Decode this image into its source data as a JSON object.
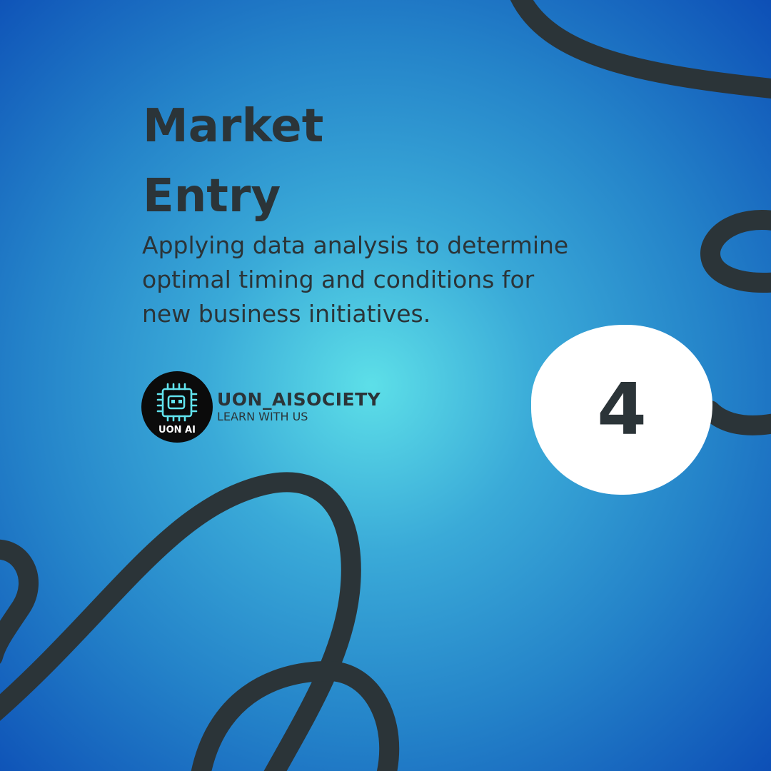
{
  "slide": {
    "title_line1": "Market",
    "title_line2": "Entry",
    "description": "Applying data analysis to determine optimal timing and conditions for new business initiatives.",
    "step_number": "4"
  },
  "brand": {
    "logo_text": "UON AI",
    "name": "UON_AISOCIETY",
    "tagline": "LEARN WITH US"
  },
  "colors": {
    "background_center": "#5ddfe8",
    "background_edge": "#0d4fb6",
    "text": "#2b3438",
    "badge": "#ffffff",
    "logo_bg": "#0b0b0b",
    "logo_accent": "#62e4ef"
  },
  "icons": {
    "logo": "chip-robot-icon"
  }
}
